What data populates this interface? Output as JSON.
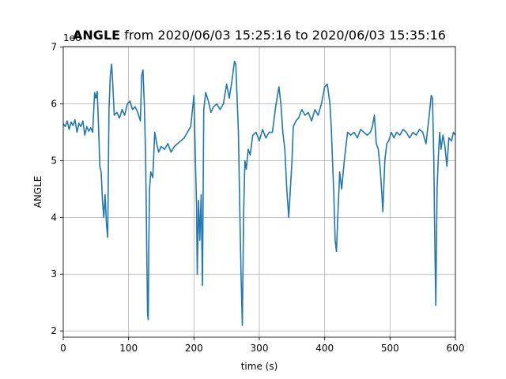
{
  "chart_data": {
    "type": "line",
    "title_bold": "ANGLE",
    "title": "from 2020/06/03 15:25:16 to 2020/06/03 15:35:16",
    "xlabel": "time (s)",
    "ylabel": "ANGLE",
    "y_offset_label": "1e6",
    "xlim": [
      0,
      600
    ],
    "ylim": [
      1.89,
      7.01
    ],
    "xticks": [
      0,
      100,
      200,
      300,
      400,
      500,
      600
    ],
    "yticks": [
      2,
      3,
      4,
      5,
      6,
      7
    ],
    "grid": true,
    "x": [
      0,
      3,
      6,
      9,
      12,
      15,
      18,
      21,
      24,
      27,
      30,
      33,
      36,
      39,
      42,
      45,
      48,
      50,
      52,
      54,
      56,
      58,
      60,
      62,
      64,
      66,
      68,
      70,
      72,
      74,
      76,
      78,
      82,
      86,
      90,
      94,
      98,
      102,
      106,
      110,
      114,
      118,
      120,
      122,
      124,
      126,
      128,
      129,
      130,
      131,
      132,
      134,
      137,
      140,
      143,
      146,
      150,
      155,
      160,
      165,
      170,
      175,
      180,
      185,
      190,
      195,
      200,
      202,
      204,
      205,
      207,
      209,
      211,
      213,
      215,
      218,
      222,
      226,
      230,
      235,
      240,
      245,
      250,
      254,
      258,
      262,
      264,
      266,
      268,
      270,
      272,
      274,
      276,
      278,
      280,
      283,
      286,
      290,
      295,
      300,
      305,
      310,
      315,
      320,
      325,
      330,
      333,
      336,
      339,
      342,
      345,
      348,
      350,
      352,
      356,
      360,
      365,
      370,
      375,
      380,
      385,
      390,
      395,
      400,
      404,
      408,
      410,
      412,
      414,
      416,
      418,
      420,
      423,
      426,
      430,
      435,
      440,
      445,
      450,
      455,
      460,
      465,
      470,
      473,
      476,
      479,
      482,
      485,
      487,
      489,
      492,
      495,
      498,
      502,
      506,
      510,
      515,
      520,
      525,
      530,
      535,
      540,
      545,
      550,
      555,
      560,
      563,
      565,
      567,
      568,
      569,
      570,
      571,
      572,
      574,
      576,
      578,
      581,
      584,
      587,
      590,
      594,
      597,
      600
    ],
    "values": [
      5.65,
      5.6,
      5.7,
      5.55,
      5.68,
      5.62,
      5.72,
      5.5,
      5.66,
      5.6,
      5.7,
      5.45,
      5.6,
      5.52,
      5.58,
      5.5,
      6.2,
      6.1,
      6.22,
      5.6,
      4.9,
      4.8,
      4.3,
      4.0,
      4.4,
      3.9,
      3.65,
      5.9,
      6.5,
      6.7,
      6.3,
      5.8,
      5.85,
      5.75,
      5.9,
      5.8,
      6.0,
      6.05,
      5.9,
      5.95,
      5.85,
      5.7,
      6.5,
      6.6,
      6.0,
      5.1,
      3.2,
      2.3,
      2.2,
      3.6,
      4.5,
      4.8,
      4.7,
      5.5,
      5.3,
      5.15,
      5.25,
      5.2,
      5.3,
      5.15,
      5.25,
      5.3,
      5.35,
      5.4,
      5.5,
      5.6,
      6.15,
      5.1,
      4.2,
      3.0,
      4.3,
      3.6,
      4.4,
      2.8,
      5.9,
      6.2,
      6.05,
      5.85,
      5.95,
      6.0,
      5.9,
      6.0,
      6.35,
      6.1,
      6.4,
      6.75,
      6.7,
      6.1,
      5.5,
      4.2,
      3.0,
      2.1,
      4.1,
      5.0,
      4.85,
      5.2,
      5.1,
      5.45,
      5.5,
      5.35,
      5.55,
      5.4,
      5.5,
      5.5,
      5.95,
      6.3,
      6.0,
      5.5,
      5.2,
      4.5,
      4.0,
      4.6,
      5.0,
      5.6,
      5.7,
      5.75,
      5.9,
      5.8,
      5.85,
      5.7,
      5.9,
      5.8,
      6.0,
      6.3,
      6.35,
      6.0,
      5.6,
      5.0,
      4.4,
      3.6,
      3.4,
      4.0,
      4.8,
      4.5,
      5.0,
      5.5,
      5.45,
      5.5,
      5.4,
      5.55,
      5.5,
      5.45,
      5.5,
      5.6,
      5.8,
      5.3,
      5.2,
      4.85,
      4.5,
      4.1,
      5.0,
      5.3,
      5.35,
      5.5,
      5.4,
      5.5,
      5.45,
      5.55,
      5.5,
      5.4,
      5.5,
      5.45,
      5.55,
      5.5,
      5.3,
      5.8,
      6.15,
      6.1,
      5.0,
      4.0,
      3.2,
      2.45,
      3.5,
      4.5,
      5.1,
      5.5,
      5.2,
      5.45,
      5.25,
      4.9,
      5.4,
      5.35,
      5.5,
      5.45
    ],
    "color": "#1f77b4"
  }
}
